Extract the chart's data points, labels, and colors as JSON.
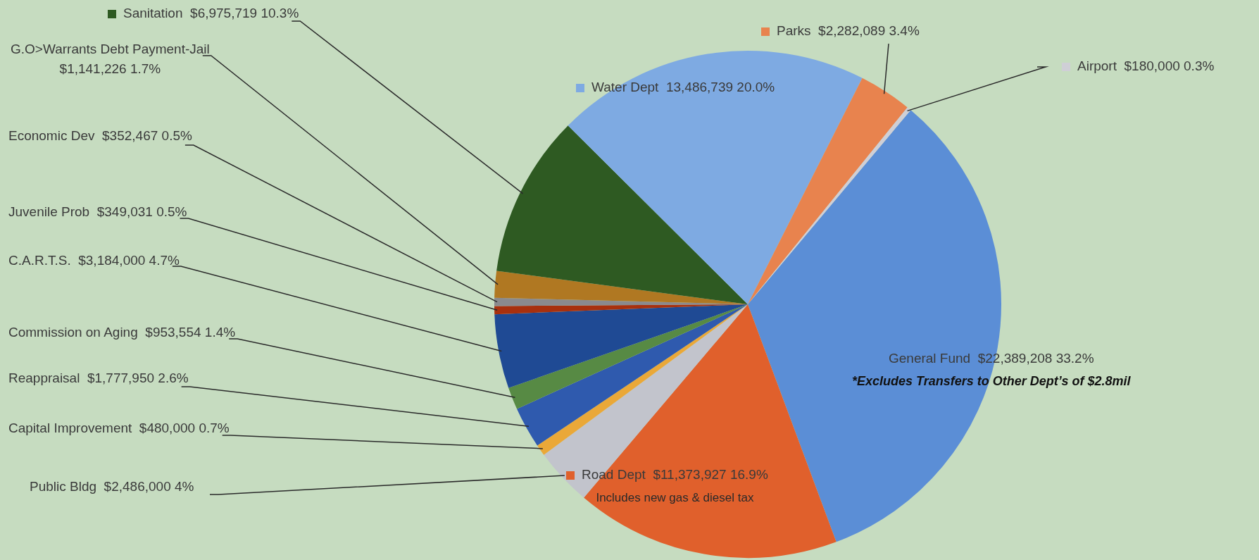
{
  "chart_data": {
    "type": "pie",
    "legend": "top",
    "categories": [
      "General Fund",
      "Road Dept",
      "Public Bldg",
      "Capital Improvement",
      "Reappraisal",
      "Commission on Aging",
      "C.A.R.T.S.",
      "Juvenile Prob",
      "Economic Dev",
      "G.O>Warrants Debt Payment-Jail",
      "Sanitation",
      "Water Dept",
      "Parks",
      "Airport"
    ],
    "values": [
      22389208,
      11373927,
      2486000,
      480000,
      1777950,
      953554,
      3184000,
      349031,
      352467,
      1141226,
      6975719,
      13486739,
      2282089,
      180000
    ],
    "colors": [
      "#5b8ed6",
      "#e0602c",
      "#c2c4cc",
      "#eaa838",
      "#2f5aae",
      "#578a44",
      "#1f4a94",
      "#a8300e",
      "#8a8a8e",
      "#b07822",
      "#2e5a22",
      "#7eaae2",
      "#e8834e",
      "#cfcfd6"
    ],
    "value_labels": [
      "$22,389,208 33.2%",
      "$11,373,927 16.9%",
      "$2,486,000 4%",
      "$480,000 0.7%",
      "$1,777,950 2.6%",
      "$953,554 1.4%",
      "$3,184,000 4.7%",
      "$349,031 0.5%",
      "$352,467 0.5%",
      "$1,141,226 1.7%",
      "$6,975,719 10.3%",
      "13,486,739 20.0%",
      "$2,282,089 3.4%",
      "$180,000 0.3%"
    ],
    "annotations": [
      {
        "text": "*Excludes Transfers to Other Dept’s of $2.8mil",
        "x": "General Fund"
      },
      {
        "text": "Includes new gas & diesel tax",
        "x": "Road Dept"
      }
    ]
  }
}
